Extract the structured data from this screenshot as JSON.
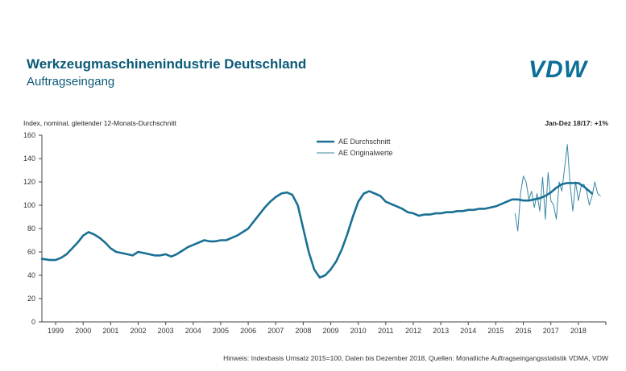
{
  "header": {
    "title": "Werkzeugmaschinenindustrie Deutschland",
    "subtitle": "Auftragseingang",
    "logo": "VDW"
  },
  "notes": {
    "yaxis_title": "Index, nominal, gleitender 12-Monats-Durchschnitt",
    "change": "Jan-Dez 18/17: +1%",
    "footnote": "Hinweis: Indexbasis Umsatz 2015=100, Daten bis Dezember 2018, Quellen: Monatliche Auftragseingangsstatistik VDMA, VDW"
  },
  "colors": {
    "main": "#1a7094",
    "thin": "#3b87a5",
    "axis": "#444444",
    "title": "#0b5a77"
  },
  "chart_data": {
    "type": "line",
    "title": "Werkzeugmaschinenindustrie Deutschland",
    "subtitle": "Auftragseingang",
    "ylabel": "Index, nominal, gleitender 12-Monats-Durchschnitt",
    "ylim": [
      0,
      160
    ],
    "yticks": [
      0,
      20,
      40,
      60,
      80,
      100,
      120,
      140,
      160
    ],
    "xlim": [
      1998.5,
      2019.0
    ],
    "xticks": [
      "1999",
      "2000",
      "2001",
      "2002",
      "2003",
      "2004",
      "2005",
      "2006",
      "2007",
      "2008",
      "2009",
      "2010",
      "2011",
      "2012",
      "2013",
      "2014",
      "2015",
      "2016",
      "2017",
      "2018"
    ],
    "grid": false,
    "legend_position": "top-center",
    "series": [
      {
        "name": "AE Durchschnitt",
        "x": [
          1998.5,
          1998.8,
          1999.0,
          1999.2,
          1999.4,
          1999.6,
          1999.8,
          2000.0,
          2000.2,
          2000.4,
          2000.6,
          2000.8,
          2001.0,
          2001.2,
          2001.4,
          2001.6,
          2001.8,
          2002.0,
          2002.2,
          2002.4,
          2002.6,
          2002.8,
          2003.0,
          2003.2,
          2003.4,
          2003.6,
          2003.8,
          2004.0,
          2004.2,
          2004.4,
          2004.6,
          2004.8,
          2005.0,
          2005.2,
          2005.4,
          2005.6,
          2005.8,
          2006.0,
          2006.2,
          2006.4,
          2006.6,
          2006.8,
          2007.0,
          2007.2,
          2007.4,
          2007.6,
          2007.8,
          2008.0,
          2008.2,
          2008.4,
          2008.6,
          2008.8,
          2009.0,
          2009.2,
          2009.4,
          2009.6,
          2009.8,
          2010.0,
          2010.2,
          2010.4,
          2010.6,
          2010.8,
          2011.0,
          2011.2,
          2011.4,
          2011.6,
          2011.8,
          2012.0,
          2012.2,
          2012.4,
          2012.6,
          2012.8,
          2013.0,
          2013.2,
          2013.4,
          2013.6,
          2013.8,
          2014.0,
          2014.2,
          2014.4,
          2014.6,
          2014.8,
          2015.0,
          2015.2,
          2015.4,
          2015.6,
          2015.8,
          2016.0,
          2016.2,
          2016.4,
          2016.6,
          2016.8,
          2017.0,
          2017.2,
          2017.4,
          2017.6,
          2017.8,
          2018.0,
          2018.2,
          2018.5
        ],
        "values": [
          54,
          53,
          53,
          55,
          58,
          63,
          68,
          74,
          77,
          75,
          72,
          68,
          63,
          60,
          59,
          58,
          57,
          60,
          59,
          58,
          57,
          57,
          58,
          56,
          58,
          61,
          64,
          66,
          68,
          70,
          69,
          69,
          70,
          70,
          72,
          74,
          77,
          80,
          86,
          92,
          98,
          103,
          107,
          110,
          111,
          109,
          100,
          80,
          60,
          45,
          38,
          40,
          45,
          52,
          62,
          75,
          90,
          103,
          110,
          112,
          110,
          108,
          103,
          101,
          99,
          97,
          94,
          93,
          91,
          92,
          92,
          93,
          93,
          94,
          94,
          95,
          95,
          96,
          96,
          97,
          97,
          98,
          99,
          101,
          103,
          105,
          105,
          104,
          104,
          105,
          106,
          108,
          111,
          115,
          118,
          119,
          119,
          119,
          116,
          110
        ]
      },
      {
        "name": "AE Originalwerte",
        "x": [
          2015.7,
          2015.8,
          2015.9,
          2016.0,
          2016.1,
          2016.2,
          2016.3,
          2016.4,
          2016.5,
          2016.6,
          2016.7,
          2016.8,
          2016.9,
          2017.0,
          2017.1,
          2017.2,
          2017.3,
          2017.4,
          2017.5,
          2017.6,
          2017.7,
          2017.8,
          2017.9,
          2018.0,
          2018.1,
          2018.2,
          2018.3,
          2018.4,
          2018.5,
          2018.6,
          2018.7,
          2018.8
        ],
        "values": [
          93,
          78,
          110,
          125,
          120,
          105,
          112,
          98,
          110,
          95,
          124,
          88,
          128,
          104,
          100,
          88,
          120,
          112,
          132,
          152,
          118,
          95,
          120,
          104,
          116,
          118,
          112,
          100,
          108,
          120,
          110,
          108
        ]
      }
    ]
  }
}
